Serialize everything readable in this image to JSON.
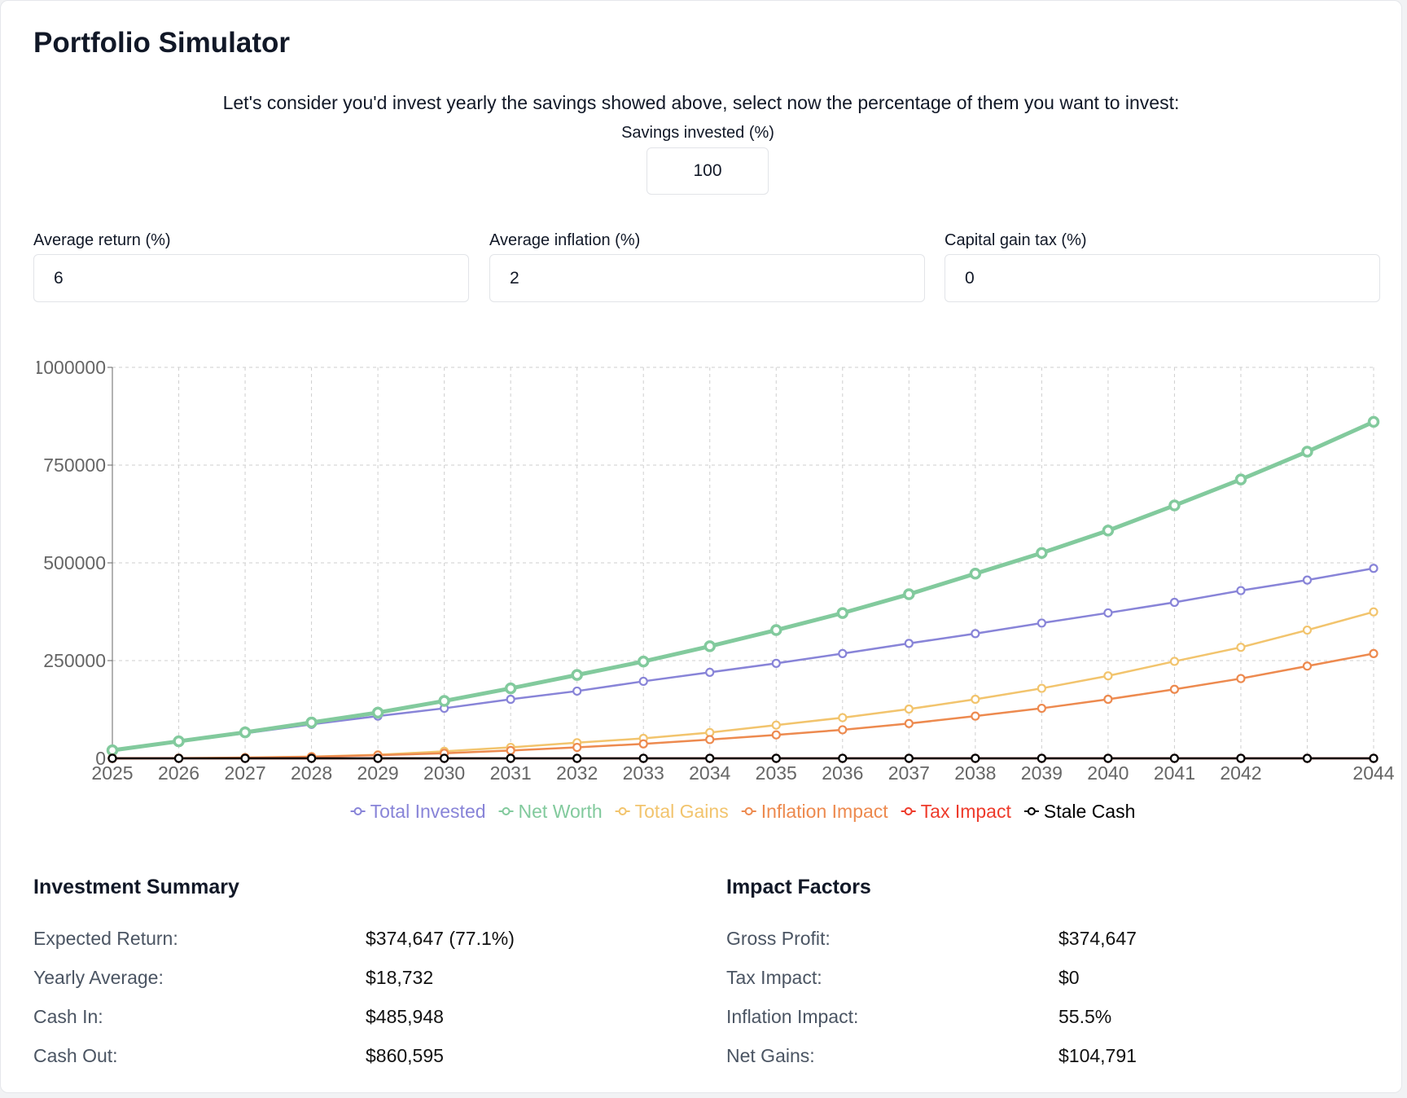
{
  "header": {
    "title": "Portfolio Simulator"
  },
  "intro": "Let's consider you'd invest yearly the savings showed above, select now the percentage of them you want to invest:",
  "savings_input": {
    "label": "Savings invested (%)",
    "value": 100
  },
  "inputs": [
    {
      "label": "Average return (%)",
      "value": 6
    },
    {
      "label": "Average inflation (%)",
      "value": 2
    },
    {
      "label": "Capital gain tax (%)",
      "value": 0
    }
  ],
  "chart_data": {
    "type": "line",
    "categories": [
      "2025",
      "2026",
      "2027",
      "2028",
      "2029",
      "2030",
      "2031",
      "2032",
      "2033",
      "2034",
      "2035",
      "2036",
      "2037",
      "2038",
      "2039",
      "2040",
      "2041",
      "2042",
      null,
      "2044"
    ],
    "ylim": [
      0,
      1000000
    ],
    "yticks": [
      0,
      250000,
      500000,
      750000,
      1000000
    ],
    "grid": true,
    "series": [
      {
        "name": "Total Invested",
        "color": "#8884d8",
        "values": [
          20000,
          43000,
          64000,
          87000,
          108000,
          128000,
          151000,
          172000,
          197000,
          220000,
          243000,
          268000,
          294000,
          319000,
          346000,
          372000,
          399000,
          429000,
          456000,
          485948
        ]
      },
      {
        "name": "Net Worth",
        "color": "#82ca9d",
        "values": [
          20600,
          43600,
          66500,
          91700,
          117000,
          146800,
          179000,
          213300,
          247700,
          286700,
          328000,
          371600,
          419700,
          472500,
          525200,
          582600,
          646800,
          713300,
          784400,
          860595
        ]
      },
      {
        "name": "Total Gains",
        "color": "#f2c46d",
        "values": [
          0,
          500,
          2000,
          4500,
          9000,
          18000,
          28000,
          40000,
          51000,
          66000,
          85000,
          104000,
          126000,
          151000,
          179000,
          211000,
          248000,
          284000,
          328000,
          374647
        ]
      },
      {
        "name": "Inflation Impact",
        "color": "#ed8a4f",
        "values": [
          0,
          400,
          1500,
          4000,
          8000,
          13000,
          20000,
          28000,
          37000,
          48000,
          60000,
          73000,
          89000,
          108000,
          128000,
          151000,
          176600,
          204000,
          236000,
          268000
        ]
      },
      {
        "name": "Tax Impact",
        "color": "#ee3b2b",
        "values": [
          0,
          0,
          0,
          0,
          0,
          0,
          0,
          0,
          0,
          0,
          0,
          0,
          0,
          0,
          0,
          0,
          0,
          0,
          0,
          0
        ]
      },
      {
        "name": "Stale Cash",
        "color": "#000000",
        "values": [
          0,
          0,
          0,
          0,
          0,
          0,
          0,
          0,
          0,
          0,
          0,
          0,
          0,
          0,
          0,
          0,
          0,
          0,
          0,
          0
        ]
      }
    ]
  },
  "summary": {
    "investment": {
      "title": "Investment Summary",
      "rows": [
        {
          "label": "Expected Return:",
          "value": "$374,647 (77.1%)"
        },
        {
          "label": "Yearly Average:",
          "value": "$18,732"
        },
        {
          "label": "Cash In:",
          "value": "$485,948"
        },
        {
          "label": "Cash Out:",
          "value": "$860,595"
        }
      ]
    },
    "impact": {
      "title": "Impact Factors",
      "rows": [
        {
          "label": "Gross Profit:",
          "value": "$374,647"
        },
        {
          "label": "Tax Impact:",
          "value": "$0"
        },
        {
          "label": "Inflation Impact:",
          "value": "55.5%"
        },
        {
          "label": "Net Gains:",
          "value": "$104,791"
        }
      ]
    }
  }
}
